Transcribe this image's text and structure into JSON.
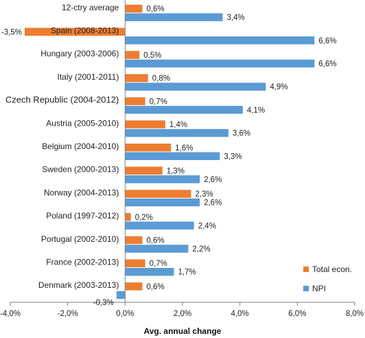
{
  "chart_data": {
    "type": "bar",
    "orientation": "horizontal",
    "categories": [
      "12-ctry average",
      "Spain (2008-2013)",
      "Hungary (2003-2006)",
      "Italy (2001-2011)",
      "Czech Republic (2004-2012)",
      "Austria (2005-2010)",
      "Belgium (2004-2010)",
      "Sweden (2000-2013)",
      "Norway (2004-2013)",
      "Poland (1997-2012)",
      "Portugal (2002-2010)",
      "France (2002-2013)",
      "Denmark (2003-2013)"
    ],
    "series": [
      {
        "name": "Total econ.",
        "color": "#ED7D31",
        "values": [
          0.6,
          -3.5,
          0.5,
          0.8,
          0.7,
          1.4,
          1.6,
          1.3,
          2.3,
          0.2,
          0.6,
          0.7,
          0.6
        ],
        "labels": [
          "0,6%",
          "-3,5%",
          "0,5%",
          "0,8%",
          "0,7%",
          "1,4%",
          "1,6%",
          "1,3%",
          "2,3%",
          "0,2%",
          "0,6%",
          "0,7%",
          "0,6%"
        ]
      },
      {
        "name": "NPI",
        "color": "#5B9BD5",
        "values": [
          3.4,
          6.6,
          6.6,
          4.9,
          4.1,
          3.6,
          3.3,
          2.6,
          2.6,
          2.4,
          2.2,
          1.7,
          -0.3
        ],
        "labels": [
          "3,4%",
          "6,6%",
          "6,6%",
          "4,9%",
          "4,1%",
          "3,6%",
          "3,3%",
          "2,6%",
          "2,6%",
          "2,4%",
          "2,2%",
          "1,7%",
          "-0,3%"
        ]
      }
    ],
    "xlabel": "Avg. annual change",
    "xlim": [
      -4.0,
      8.0
    ],
    "xticks": [
      -4,
      -2,
      0,
      2,
      4,
      6,
      8
    ],
    "xtick_labels": [
      "-4,0%",
      "-2,0%",
      "0,0%",
      "2,0%",
      "4,0%",
      "6,0%",
      "8,0%"
    ],
    "legend_position": "bottom-right",
    "grid": false
  }
}
